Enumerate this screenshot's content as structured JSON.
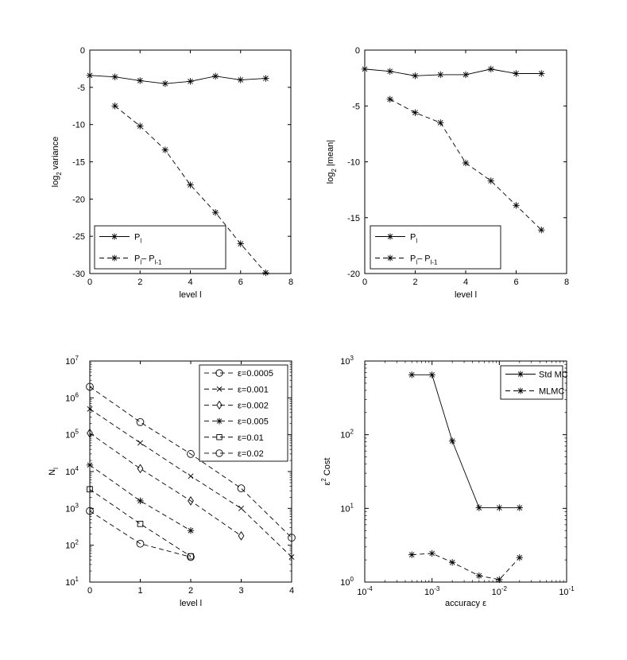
{
  "chart_data": [
    {
      "type": "line",
      "xlabel": "level l",
      "ylabel_parts": [
        "log",
        "2",
        " variance"
      ],
      "xlim": [
        0,
        8
      ],
      "ylim": [
        -30,
        0
      ],
      "yscale": "linear",
      "xticks": [
        "0",
        "2",
        "4",
        "6",
        "8"
      ],
      "yticks": [
        "-30",
        "-25",
        "-20",
        "-15",
        "-10",
        "-5",
        "0"
      ],
      "legend_position": "bottom-left",
      "series": [
        {
          "name_parts": [
            "P",
            "l",
            ""
          ],
          "line_style": "solid",
          "marker": "asterisk",
          "x": [
            0,
            1,
            2,
            3,
            4,
            5,
            6,
            7
          ],
          "y": [
            -3.4,
            -3.6,
            -4.1,
            -4.5,
            -4.2,
            -3.5,
            -4.0,
            -3.8
          ]
        },
        {
          "name_parts": [
            "P",
            "l",
            "– P",
            "l-1"
          ],
          "line_style": "dashed",
          "marker": "asterisk",
          "x": [
            1,
            2,
            3,
            4,
            5,
            6,
            7
          ],
          "y": [
            -7.5,
            -10.2,
            -13.4,
            -18.1,
            -21.8,
            -26.0,
            -29.9
          ]
        }
      ]
    },
    {
      "type": "line",
      "xlabel": "level l",
      "ylabel_parts": [
        "log",
        "2",
        " |mean|"
      ],
      "xlim": [
        0,
        8
      ],
      "ylim": [
        -20,
        0
      ],
      "yscale": "linear",
      "xticks": [
        "0",
        "2",
        "4",
        "6",
        "8"
      ],
      "yticks": [
        "-20",
        "-15",
        "-10",
        "-5",
        "0"
      ],
      "legend_position": "bottom-left",
      "series": [
        {
          "name_parts": [
            "P",
            "l",
            ""
          ],
          "line_style": "solid",
          "marker": "asterisk",
          "x": [
            0,
            1,
            2,
            3,
            4,
            5,
            6,
            7
          ],
          "y": [
            -1.7,
            -1.9,
            -2.3,
            -2.2,
            -2.2,
            -1.7,
            -2.1,
            -2.1
          ]
        },
        {
          "name_parts": [
            "P",
            "l",
            "– P",
            "l-1"
          ],
          "line_style": "dashed",
          "marker": "asterisk",
          "x": [
            1,
            2,
            3,
            4,
            5,
            6,
            7
          ],
          "y": [
            -4.4,
            -5.6,
            -6.5,
            -10.1,
            -11.7,
            -13.9,
            -16.1
          ]
        }
      ]
    },
    {
      "type": "line",
      "xlabel": "level l",
      "ylabel_parts": [
        "N",
        "l",
        ""
      ],
      "xlim": [
        0,
        4
      ],
      "ylim": [
        10,
        10000000
      ],
      "yscale": "log",
      "xticks": [
        "0",
        "1",
        "2",
        "3",
        "4"
      ],
      "yticks_log_exponents": [
        "1",
        "2",
        "3",
        "4",
        "5",
        "6",
        "7"
      ],
      "legend_position": "top-right",
      "series": [
        {
          "name": "ε=0.0005",
          "line_style": "dashed",
          "marker": "circle",
          "x": [
            0,
            1,
            2,
            3,
            4
          ],
          "y": [
            2000000,
            220000,
            30000,
            3500,
            160
          ]
        },
        {
          "name": "ε=0.001",
          "line_style": "dashed",
          "marker": "x",
          "x": [
            0,
            1,
            2,
            3,
            4
          ],
          "y": [
            500000,
            60000,
            7500,
            1000,
            48
          ]
        },
        {
          "name": "ε=0.002",
          "line_style": "dashed",
          "marker": "diamond",
          "x": [
            0,
            1,
            2,
            3
          ],
          "y": [
            110000,
            12000,
            1600,
            180
          ]
        },
        {
          "name": "ε=0.005",
          "line_style": "dashed",
          "marker": "asterisk",
          "x": [
            0,
            1,
            2
          ],
          "y": [
            15000,
            1600,
            250
          ]
        },
        {
          "name": "ε=0.01",
          "line_style": "dashed",
          "marker": "square",
          "x": [
            0,
            1,
            2
          ],
          "y": [
            3300,
            380,
            50
          ]
        },
        {
          "name": "ε=0.02",
          "line_style": "dashed",
          "marker": "circle",
          "x": [
            0,
            1,
            2
          ],
          "y": [
            850,
            110,
            48
          ]
        }
      ]
    },
    {
      "type": "line",
      "xlabel": "accuracy ε",
      "ylabel_parts": [
        "ε",
        "2",
        " Cost"
      ],
      "xlim": [
        0.0001,
        0.1
      ],
      "ylim": [
        1,
        1000
      ],
      "xscale": "log",
      "yscale": "log",
      "xticks_log_exponents": [
        "-4",
        "-3",
        "-2",
        "-1"
      ],
      "yticks_log_exponents": [
        "0",
        "1",
        "2",
        "3"
      ],
      "legend_position": "top-right",
      "series": [
        {
          "name": "Std MC",
          "line_style": "solid",
          "marker": "asterisk",
          "x": [
            0.0005,
            0.001,
            0.002,
            0.005,
            0.01,
            0.02
          ],
          "y": [
            650,
            650,
            82,
            10.2,
            10.2,
            10.2
          ]
        },
        {
          "name": "MLMC",
          "line_style": "dashed",
          "marker": "asterisk",
          "x": [
            0.0005,
            0.001,
            0.002,
            0.005,
            0.01,
            0.02
          ],
          "y": [
            2.35,
            2.45,
            1.85,
            1.22,
            1.08,
            2.15
          ]
        }
      ]
    }
  ]
}
